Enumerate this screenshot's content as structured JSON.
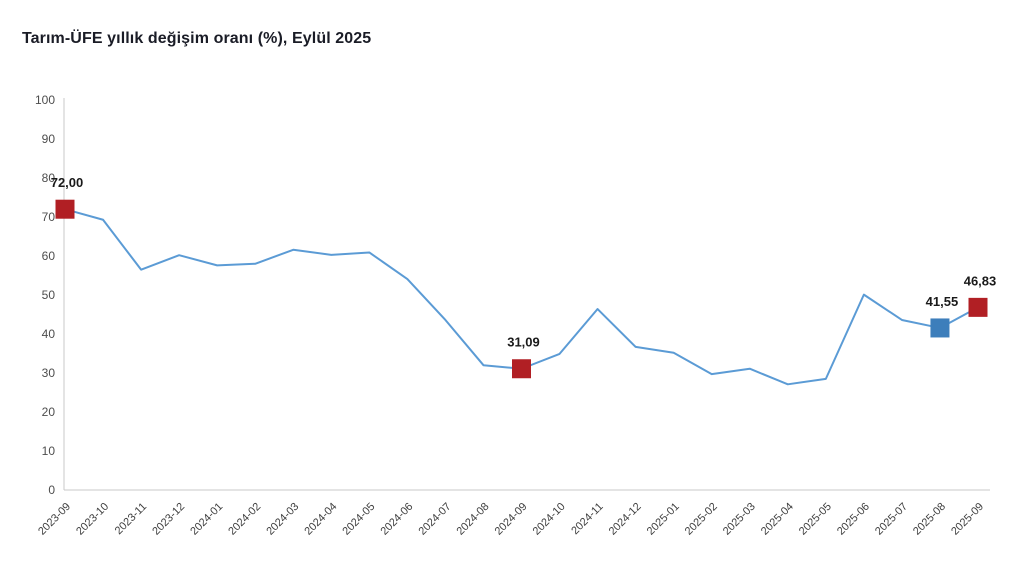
{
  "title": "Tarım-ÜFE yıllık değişim oranı (%), Eylül 2025",
  "chart_data": {
    "type": "line",
    "title": "Tarım-ÜFE yıllık değişim oranı (%), Eylül 2025",
    "x": [
      "2023-09",
      "2023-10",
      "2023-11",
      "2023-12",
      "2024-01",
      "2024-02",
      "2024-03",
      "2024-04",
      "2024-05",
      "2024-06",
      "2024-07",
      "2024-08",
      "2024-09",
      "2024-10",
      "2024-11",
      "2024-12",
      "2025-01",
      "2025-02",
      "2025-03",
      "2025-04",
      "2025-05",
      "2025-06",
      "2025-07",
      "2025-08",
      "2025-09"
    ],
    "series": [
      {
        "name": "Tarım-ÜFE yıllık değişim oranı (%)",
        "values": [
          72.0,
          69.3,
          56.5,
          60.2,
          57.6,
          58.0,
          61.6,
          60.3,
          60.9,
          54.1,
          43.6,
          32.0,
          31.09,
          34.9,
          46.4,
          36.7,
          35.2,
          29.7,
          31.1,
          27.1,
          28.5,
          50.1,
          43.6,
          41.55,
          46.83
        ]
      }
    ],
    "ylim": [
      0,
      100
    ],
    "ytick_step": 10,
    "ytick_labels": [
      "0",
      "10",
      "20",
      "30",
      "40",
      "50",
      "60",
      "70",
      "80",
      "90",
      "100"
    ],
    "grid": false,
    "legend": "none",
    "line_color": "#5B9BD5",
    "annotations": [
      {
        "index": 0,
        "x": "2023-09",
        "value": 72.0,
        "label": "72,00",
        "marker": "square",
        "marker_color": "#B11F24"
      },
      {
        "index": 12,
        "x": "2024-09",
        "value": 31.09,
        "label": "31,09",
        "marker": "square",
        "marker_color": "#B11F24"
      },
      {
        "index": 23,
        "x": "2025-08",
        "value": 41.55,
        "label": "41,55",
        "marker": "square",
        "marker_color": "#3D7EBB"
      },
      {
        "index": 24,
        "x": "2025-09",
        "value": 46.83,
        "label": "46,83",
        "marker": "square",
        "marker_color": "#B11F24"
      }
    ]
  },
  "colors": {
    "title": "#1a1c26",
    "axis_line": "#c9c9c9",
    "line": "#5B9BD5",
    "marker_red": "#B11F24",
    "marker_blue": "#3D7EBB"
  }
}
